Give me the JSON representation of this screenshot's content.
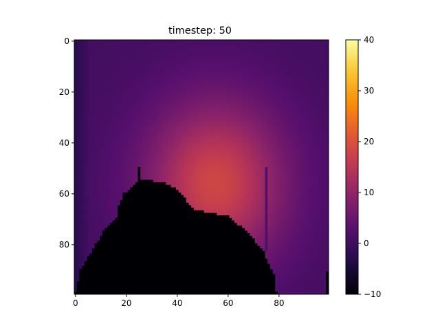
{
  "chart_data": {
    "type": "heatmap",
    "title": "timestep: 50",
    "xlabel": "",
    "ylabel": "",
    "x_range": [
      -0.5,
      99.5
    ],
    "y_range": [
      -0.5,
      99.5
    ],
    "y_inverted": true,
    "x_ticks": [
      0,
      20,
      40,
      60,
      80
    ],
    "y_ticks": [
      0,
      20,
      40,
      60,
      80
    ],
    "grid": false,
    "colormap": "inferno",
    "colorbar": {
      "min": -10,
      "max": 40,
      "ticks": [
        -10,
        0,
        10,
        20,
        30,
        40
      ]
    },
    "field": {
      "background_value": 0.5,
      "hot_center": [
        55,
        56
      ],
      "hot_peak": 18,
      "hot_radius": [
        32,
        38
      ],
      "masked_value": -10,
      "obstacle_boundary": [
        [
          0,
          99
        ],
        [
          2,
          90
        ],
        [
          5,
          85
        ],
        [
          8,
          80
        ],
        [
          11,
          75
        ],
        [
          14,
          72
        ],
        [
          16,
          70
        ],
        [
          17,
          65
        ],
        [
          19,
          60
        ],
        [
          22,
          58
        ],
        [
          25,
          54
        ],
        [
          30,
          55
        ],
        [
          35,
          56
        ],
        [
          39,
          58
        ],
        [
          43,
          62
        ],
        [
          46,
          66
        ],
        [
          50,
          67
        ],
        [
          55,
          68
        ],
        [
          60,
          69
        ],
        [
          65,
          73
        ],
        [
          70,
          78
        ],
        [
          74,
          83
        ],
        [
          76,
          88
        ],
        [
          78,
          92
        ],
        [
          79,
          99
        ]
      ],
      "spikes": [
        {
          "x": 25,
          "y_from": 50,
          "y_to": 54,
          "value": -10
        },
        {
          "x": 75,
          "y_from": 50,
          "y_to": 82,
          "value": 2
        }
      ],
      "edge_columns": [
        {
          "x": 99,
          "y_from": 91,
          "y_to": 99,
          "value": -10
        }
      ]
    }
  }
}
